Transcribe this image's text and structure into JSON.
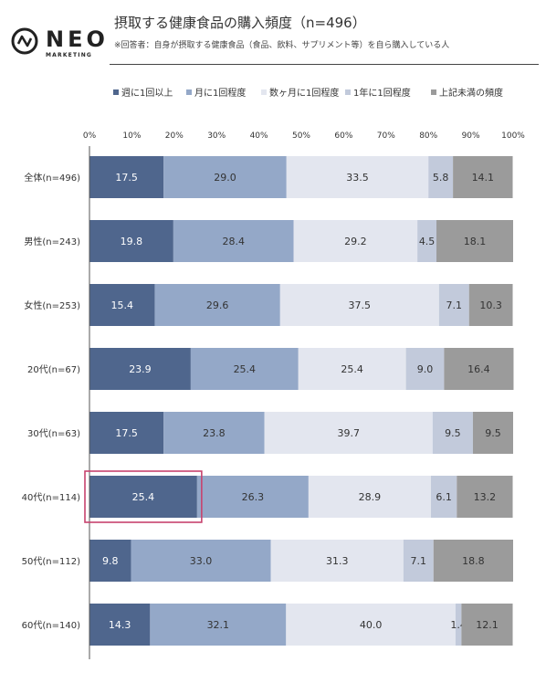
{
  "header": {
    "title": "摂取する健康食品の購入頻度（n=496）",
    "subtitle": "※回答者：自身が摂取する健康食品（食品、飲料、サプリメント等）を自ら購入している人",
    "logo_word": "NEO",
    "logo_sub": "MARKETING"
  },
  "chart_data": {
    "type": "bar",
    "orientation": "horizontal",
    "stacked": true,
    "percent_scale": true,
    "xlim": [
      0,
      100
    ],
    "xticks": [
      "0%",
      "10%",
      "20%",
      "30%",
      "40%",
      "50%",
      "60%",
      "70%",
      "80%",
      "90%",
      "100%"
    ],
    "legend_position": "top",
    "categories": [
      "全体(n=496)",
      "男性(n=243)",
      "女性(n=253)",
      "20代(n=67)",
      "30代(n=63)",
      "40代(n=114)",
      "50代(n=112)",
      "60代(n=140)"
    ],
    "series": [
      {
        "name": "週に1回以上",
        "color": "#4f668d",
        "values": [
          17.5,
          19.8,
          15.4,
          23.9,
          17.5,
          25.4,
          9.8,
          14.3
        ]
      },
      {
        "name": "月に1回程度",
        "color": "#94a8c8",
        "values": [
          29.0,
          28.4,
          29.6,
          25.4,
          23.8,
          26.3,
          33.0,
          32.1
        ]
      },
      {
        "name": "数ヶ月に1回程度",
        "color": "#e3e6ef",
        "values": [
          33.5,
          29.2,
          37.5,
          25.4,
          39.7,
          28.9,
          31.3,
          40.0
        ]
      },
      {
        "name": "1年に1回程度",
        "color": "#c2cadb",
        "values": [
          5.8,
          4.5,
          7.1,
          9.0,
          9.5,
          6.1,
          7.1,
          1.4
        ]
      },
      {
        "name": "上記未満の頻度",
        "color": "#9b9b9b",
        "values": [
          14.1,
          18.1,
          10.3,
          16.4,
          9.5,
          13.2,
          18.8,
          12.1
        ]
      }
    ],
    "value_labels": [
      [
        "17.5",
        "29.0",
        "33.5",
        "5.8",
        "14.1"
      ],
      [
        "19.8",
        "28.4",
        "29.2",
        "4.5",
        "18.1"
      ],
      [
        "15.4",
        "29.6",
        "37.5",
        "7.1",
        "10.3"
      ],
      [
        "23.9",
        "25.4",
        "25.4",
        "9.0",
        "16.4"
      ],
      [
        "17.5",
        "23.8",
        "39.7",
        "9.5",
        "9.5"
      ],
      [
        "25.4",
        "26.3",
        "28.9",
        "6.1",
        "13.2"
      ],
      [
        "9.8",
        "33.0",
        "31.3",
        "7.1",
        "18.8"
      ],
      [
        "14.3",
        "32.1",
        "40.0",
        "1.4",
        "12.1"
      ]
    ],
    "highlight": {
      "category_index": 5,
      "series_index": 0,
      "color": "#c7436e"
    }
  }
}
